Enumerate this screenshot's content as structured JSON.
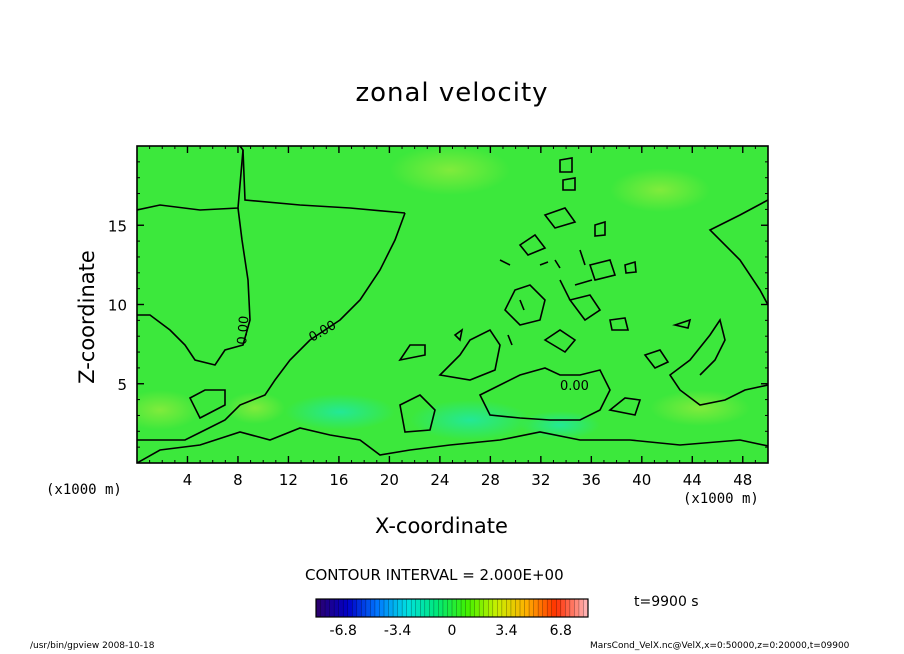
{
  "chart_data": {
    "type": "heatmap",
    "title": "zonal velocity",
    "xlabel": "X-coordinate",
    "ylabel": "Z-coordinate",
    "x_unit": "(x1000 m)",
    "x_ticks": [
      4,
      8,
      12,
      16,
      20,
      24,
      28,
      32,
      36,
      40,
      44,
      48
    ],
    "y_ticks": [
      5,
      10,
      15
    ],
    "xlim": [
      0,
      50
    ],
    "ylim": [
      0,
      20
    ],
    "contour_interval_label": "CONTOUR INTERVAL = 2.000E+00",
    "contour_labels": [
      "0.00",
      "0.00",
      "0.00"
    ],
    "colorbar": {
      "ticks": [
        "-6.8",
        "-3.4",
        "0",
        "3.4",
        "6.8"
      ],
      "range": [
        -8.5,
        8.5
      ],
      "colors": [
        "#2a0070",
        "#0000c8",
        "#0078ff",
        "#00e0e0",
        "#00e878",
        "#40f000",
        "#c8f000",
        "#ffb000",
        "#ff3000",
        "#ffb0b0"
      ]
    },
    "field_color": "#3ce83c",
    "time": "t=9900 s"
  },
  "footer": {
    "left": "/usr/bin/gpview   2008-10-18",
    "right": "MarsCond_VelX.nc@VelX,x=0:50000,z=0:20000,t=09900"
  }
}
